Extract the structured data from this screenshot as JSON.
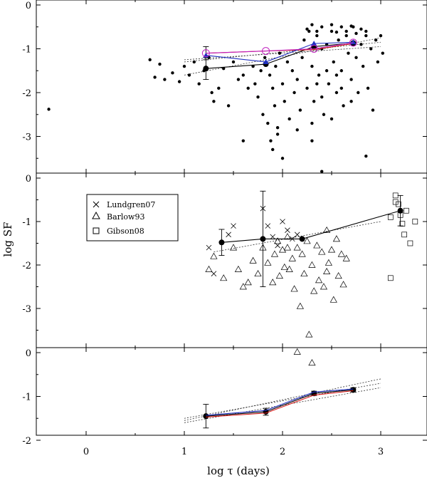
{
  "figure": {
    "xlabel": "log τ (days)",
    "ylabel": "log SF"
  },
  "chart_data": [
    {
      "type": "scatter",
      "panel": "top",
      "x_ticks": [
        "0",
        "1",
        "2",
        "3"
      ],
      "y_ticks": [
        "0",
        "-1",
        "-2",
        "-3"
      ],
      "ylim": [
        -3.8,
        0
      ],
      "xlim": [
        -0.4,
        3.5
      ],
      "scatter_points": [
        [
          -0.38,
          -2.38
        ],
        [
          0.65,
          -1.25
        ],
        [
          0.7,
          -1.65
        ],
        [
          0.75,
          -1.35
        ],
        [
          0.8,
          -1.7
        ],
        [
          0.88,
          -1.55
        ],
        [
          0.95,
          -1.75
        ],
        [
          1.0,
          -1.4
        ],
        [
          1.05,
          -1.6
        ],
        [
          1.1,
          -1.3
        ],
        [
          1.15,
          -1.8
        ],
        [
          1.2,
          -1.5
        ],
        [
          1.25,
          -1.2
        ],
        [
          1.28,
          -2.0
        ],
        [
          1.3,
          -2.2
        ],
        [
          1.35,
          -1.9
        ],
        [
          1.4,
          -1.45
        ],
        [
          1.45,
          -2.3
        ],
        [
          1.5,
          -1.3
        ],
        [
          1.55,
          -1.7
        ],
        [
          1.6,
          -1.6
        ],
        [
          1.65,
          -1.9
        ],
        [
          1.7,
          -1.4
        ],
        [
          1.72,
          -1.8
        ],
        [
          1.75,
          -2.1
        ],
        [
          1.78,
          -1.5
        ],
        [
          1.8,
          -2.5
        ],
        [
          1.82,
          -1.2
        ],
        [
          1.85,
          -2.7
        ],
        [
          1.87,
          -1.6
        ],
        [
          1.88,
          -3.1
        ],
        [
          1.9,
          -1.9
        ],
        [
          1.92,
          -2.3
        ],
        [
          1.93,
          -1.4
        ],
        [
          1.95,
          -2.8
        ],
        [
          1.97,
          -1.1
        ],
        [
          2.0,
          -1.8
        ],
        [
          2.02,
          -2.2
        ],
        [
          2.05,
          -1.3
        ],
        [
          2.07,
          -2.6
        ],
        [
          2.1,
          -1.5
        ],
        [
          2.12,
          -2.0
        ],
        [
          2.15,
          -1.7
        ],
        [
          2.18,
          -2.4
        ],
        [
          2.2,
          -1.2
        ],
        [
          2.22,
          -0.8
        ],
        [
          2.25,
          -1.9
        ],
        [
          2.27,
          -0.6
        ],
        [
          2.3,
          -1.4
        ],
        [
          2.32,
          -2.2
        ],
        [
          2.35,
          -0.7
        ],
        [
          2.37,
          -1.6
        ],
        [
          2.4,
          -1.0
        ],
        [
          2.42,
          -2.5
        ],
        [
          2.45,
          -0.9
        ],
        [
          2.47,
          -1.8
        ],
        [
          2.5,
          -0.6
        ],
        [
          2.52,
          -1.3
        ],
        [
          2.55,
          -2.0
        ],
        [
          2.57,
          -0.8
        ],
        [
          2.6,
          -1.5
        ],
        [
          2.62,
          -2.3
        ],
        [
          2.65,
          -0.7
        ],
        [
          2.67,
          -1.1
        ],
        [
          2.7,
          -1.7
        ],
        [
          2.72,
          -0.5
        ],
        [
          2.75,
          -1.2
        ],
        [
          2.77,
          -2.0
        ],
        [
          2.8,
          -0.9
        ],
        [
          2.82,
          -1.4
        ],
        [
          2.85,
          -0.6
        ],
        [
          2.87,
          -1.9
        ],
        [
          2.9,
          -1.0
        ],
        [
          2.92,
          -2.4
        ],
        [
          2.95,
          -0.8
        ],
        [
          2.97,
          -1.3
        ],
        [
          3.0,
          -0.7
        ],
        [
          3.02,
          -1.1
        ],
        [
          2.3,
          -0.45
        ],
        [
          2.4,
          -0.5
        ],
        [
          2.5,
          -0.45
        ],
        [
          2.6,
          -0.5
        ],
        [
          2.7,
          -0.48
        ],
        [
          2.8,
          -0.55
        ],
        [
          2.25,
          -0.55
        ],
        [
          2.35,
          -0.6
        ],
        [
          2.55,
          -0.62
        ],
        [
          2.65,
          -0.6
        ],
        [
          2.75,
          -0.65
        ],
        [
          2.85,
          -0.7
        ],
        [
          2.45,
          -1.5
        ],
        [
          2.55,
          -1.6
        ],
        [
          2.35,
          -1.8
        ],
        [
          2.6,
          -1.9
        ],
        [
          2.4,
          -2.1
        ],
        [
          2.7,
          -2.2
        ],
        [
          1.6,
          -3.1
        ],
        [
          1.9,
          -3.3
        ],
        [
          2.0,
          -3.5
        ],
        [
          2.3,
          -3.1
        ],
        [
          2.4,
          -3.8
        ],
        [
          2.85,
          -3.45
        ],
        [
          2.15,
          -2.85
        ],
        [
          1.95,
          -2.95
        ],
        [
          2.5,
          -2.6
        ],
        [
          2.3,
          -2.7
        ]
      ],
      "series": [
        {
          "color": "#000000",
          "style": "solid",
          "marker": "filled-circle",
          "x": [
            1.22,
            1.83,
            2.32,
            2.72
          ],
          "y": [
            -1.45,
            -1.35,
            -0.95,
            -0.87
          ]
        },
        {
          "color": "#d81b1b",
          "style": "solid",
          "marker": "none",
          "x": [
            1.22,
            1.83,
            2.32,
            2.72
          ],
          "y": [
            -1.1,
            -1.05,
            -1.02,
            -0.88
          ]
        },
        {
          "color": "#2030c0",
          "style": "solid",
          "marker": "filled-triangle",
          "x": [
            1.22,
            1.83,
            2.32,
            2.72
          ],
          "y": [
            -1.15,
            -1.3,
            -0.88,
            -0.85
          ]
        },
        {
          "color": "#c020c0",
          "style": "solid",
          "marker": "open-circle",
          "x": [
            1.22,
            1.83,
            2.32,
            2.72
          ],
          "y": [
            -1.1,
            -1.05,
            -1.0,
            -0.86
          ]
        }
      ],
      "error_bars": [
        {
          "x": 1.22,
          "y": -1.45,
          "lo": 0.25,
          "hi": 0.25
        },
        {
          "x": 1.22,
          "y": -1.1,
          "lo": 0.15,
          "hi": 0.15
        }
      ],
      "fit_lines": [
        {
          "x": [
            1.0,
            3.0
          ],
          "y": [
            -1.6,
            -0.75
          ]
        },
        {
          "x": [
            1.0,
            3.0
          ],
          "y": [
            -1.3,
            -0.85
          ]
        },
        {
          "x": [
            1.0,
            3.0
          ],
          "y": [
            -1.25,
            -0.95
          ]
        }
      ]
    },
    {
      "type": "scatter",
      "panel": "middle",
      "x_ticks": [
        "0",
        "1",
        "2",
        "3"
      ],
      "y_ticks": [
        "0",
        "-1",
        "-2",
        "-3"
      ],
      "ylim": [
        -4,
        0
      ],
      "xlim": [
        -0.4,
        3.5
      ],
      "legend": [
        "Lundgren07",
        "Barlow93",
        "Gibson08"
      ],
      "legend_position": "upper-left",
      "lundgren07": [
        [
          1.25,
          -1.6
        ],
        [
          1.3,
          -2.2
        ],
        [
          1.45,
          -1.3
        ],
        [
          1.5,
          -1.1
        ],
        [
          1.85,
          -1.1
        ],
        [
          1.9,
          -1.35
        ],
        [
          1.95,
          -1.55
        ],
        [
          2.0,
          -1.0
        ],
        [
          2.05,
          -1.2
        ],
        [
          2.1,
          -1.4
        ],
        [
          2.15,
          -1.3
        ],
        [
          1.8,
          -0.7
        ]
      ],
      "barlow93": [
        [
          1.25,
          -2.1
        ],
        [
          1.3,
          -1.8
        ],
        [
          1.4,
          -2.3
        ],
        [
          1.5,
          -1.6
        ],
        [
          1.55,
          -2.1
        ],
        [
          1.6,
          -2.5
        ],
        [
          1.65,
          -2.4
        ],
        [
          1.7,
          -1.9
        ],
        [
          1.75,
          -2.2
        ],
        [
          1.8,
          -1.6
        ],
        [
          1.85,
          -1.95
        ],
        [
          1.9,
          -2.4
        ],
        [
          1.92,
          -1.75
        ],
        [
          1.95,
          -1.45
        ],
        [
          1.97,
          -2.25
        ],
        [
          2.0,
          -1.65
        ],
        [
          2.02,
          -2.05
        ],
        [
          2.05,
          -1.35
        ],
        [
          2.07,
          -2.1
        ],
        [
          2.1,
          -1.85
        ],
        [
          2.12,
          -2.55
        ],
        [
          2.15,
          -1.6
        ],
        [
          2.18,
          -2.95
        ],
        [
          2.2,
          -1.75
        ],
        [
          2.22,
          -2.2
        ],
        [
          2.25,
          -1.45
        ],
        [
          2.27,
          -3.6
        ],
        [
          2.3,
          -2.0
        ],
        [
          2.32,
          -2.6
        ],
        [
          2.35,
          -1.55
        ],
        [
          2.37,
          -2.35
        ],
        [
          2.4,
          -1.7
        ],
        [
          2.42,
          -2.5
        ],
        [
          2.45,
          -1.2
        ],
        [
          2.47,
          -1.95
        ],
        [
          2.5,
          -1.65
        ],
        [
          2.52,
          -2.8
        ],
        [
          2.55,
          -1.4
        ],
        [
          2.57,
          -2.25
        ],
        [
          2.6,
          -1.75
        ],
        [
          2.62,
          -2.45
        ],
        [
          2.65,
          -1.85
        ],
        [
          2.3,
          -4.25
        ],
        [
          2.15,
          -4.0
        ],
        [
          2.45,
          -2.15
        ],
        [
          2.05,
          -1.6
        ]
      ],
      "gibson08": [
        [
          3.1,
          -0.9
        ],
        [
          3.15,
          -0.4
        ],
        [
          3.18,
          -0.6
        ],
        [
          3.2,
          -0.85
        ],
        [
          3.22,
          -1.05
        ],
        [
          3.24,
          -1.3
        ],
        [
          3.26,
          -0.75
        ],
        [
          3.3,
          -1.5
        ],
        [
          3.35,
          -1.0
        ],
        [
          3.1,
          -2.3
        ],
        [
          3.15,
          -0.55
        ]
      ],
      "series": [
        {
          "color": "#000000",
          "style": "solid",
          "marker": "filled-circle",
          "x": [
            1.38,
            1.8,
            2.2,
            3.2
          ],
          "y": [
            -1.48,
            -1.4,
            -1.4,
            -0.75
          ]
        }
      ],
      "error_bars": [
        {
          "x": 1.38,
          "y": -1.48,
          "lo": 0.3,
          "hi": 0.3
        },
        {
          "x": 1.8,
          "y": -1.4,
          "lo": 1.1,
          "hi": 1.1
        },
        {
          "x": 3.2,
          "y": -0.75,
          "lo": 0.35,
          "hi": 0.35
        }
      ],
      "fit_lines": [
        {
          "x": [
            1.3,
            3.0
          ],
          "y": [
            -1.7,
            -1.0
          ]
        }
      ]
    },
    {
      "type": "line",
      "panel": "bottom",
      "x_ticks": [
        "0",
        "1",
        "2",
        "3"
      ],
      "y_ticks": [
        "0",
        "-1",
        "-2"
      ],
      "ylim": [
        -2,
        0
      ],
      "xlim": [
        -0.4,
        3.5
      ],
      "series": [
        {
          "color": "#000000",
          "style": "solid",
          "marker": "filled-circle",
          "x": [
            1.22,
            1.83,
            2.32,
            2.72
          ],
          "y": [
            -1.45,
            -1.35,
            -0.93,
            -0.85
          ]
        },
        {
          "color": "#d81b1b",
          "style": "solid",
          "marker": "none",
          "x": [
            1.22,
            1.83,
            2.32,
            2.72
          ],
          "y": [
            -1.47,
            -1.38,
            -0.97,
            -0.87
          ]
        },
        {
          "color": "#2030c0",
          "style": "solid",
          "marker": "none",
          "x": [
            1.22,
            1.83,
            2.32,
            2.72
          ],
          "y": [
            -1.43,
            -1.32,
            -0.9,
            -0.83
          ]
        }
      ],
      "error_bars": [
        {
          "x": 1.22,
          "y": -1.45,
          "lo": 0.27,
          "hi": 0.27
        },
        {
          "x": 1.83,
          "y": -1.35,
          "lo": 0.08,
          "hi": 0.08
        },
        {
          "x": 2.32,
          "y": -0.93,
          "lo": 0.05,
          "hi": 0.05
        },
        {
          "x": 2.72,
          "y": -0.85,
          "lo": 0.05,
          "hi": 0.05
        }
      ],
      "fit_lines": [
        {
          "x": [
            1.0,
            3.0
          ],
          "y": [
            -1.55,
            -0.6
          ]
        },
        {
          "x": [
            1.0,
            3.0
          ],
          "y": [
            -1.5,
            -0.7
          ]
        },
        {
          "x": [
            1.0,
            3.0
          ],
          "y": [
            -1.6,
            -0.8
          ]
        }
      ]
    }
  ]
}
